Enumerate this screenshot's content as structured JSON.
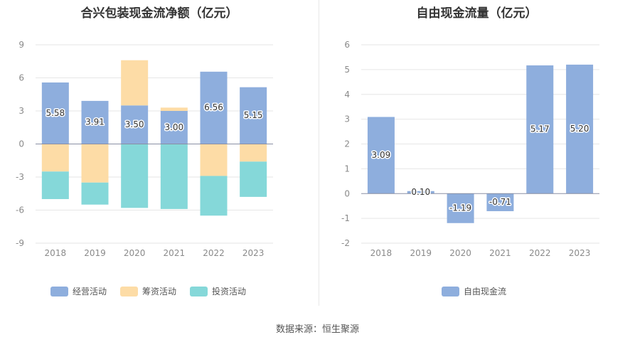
{
  "source": "数据来源：恒生聚源",
  "chart_data": [
    {
      "type": "bar",
      "stacked": true,
      "title": "合兴包装现金流净额（亿元）",
      "categories": [
        "2018",
        "2019",
        "2020",
        "2021",
        "2022",
        "2023"
      ],
      "ylim": [
        -9,
        9
      ],
      "yticks": [
        9,
        6,
        3,
        0,
        -3,
        -6,
        -9
      ],
      "legend_position": "bottom",
      "series": [
        {
          "name": "经营活动",
          "color": "#8eaedd",
          "values": [
            5.58,
            3.91,
            3.5,
            3.0,
            6.56,
            5.15
          ],
          "show_labels": true
        },
        {
          "name": "筹资活动",
          "color": "#fddca6",
          "values": [
            -2.5,
            -3.5,
            4.1,
            0.3,
            -2.9,
            -1.6
          ],
          "show_labels": false
        },
        {
          "name": "投资活动",
          "color": "#85d8d9",
          "values": [
            -2.5,
            -2.0,
            -5.8,
            -5.9,
            -3.6,
            -3.2
          ],
          "show_labels": false
        }
      ]
    },
    {
      "type": "bar",
      "title": "自由现金流量（亿元）",
      "categories": [
        "2018",
        "2019",
        "2020",
        "2021",
        "2022",
        "2023"
      ],
      "ylim": [
        -2,
        6
      ],
      "yticks": [
        6,
        5,
        4,
        3,
        2,
        1,
        0,
        -1,
        -2
      ],
      "legend_position": "bottom",
      "series": [
        {
          "name": "自由现金流",
          "color": "#8eaedd",
          "values": [
            3.09,
            0.1,
            -1.19,
            -0.71,
            5.17,
            5.2
          ],
          "show_labels": true
        }
      ]
    }
  ]
}
